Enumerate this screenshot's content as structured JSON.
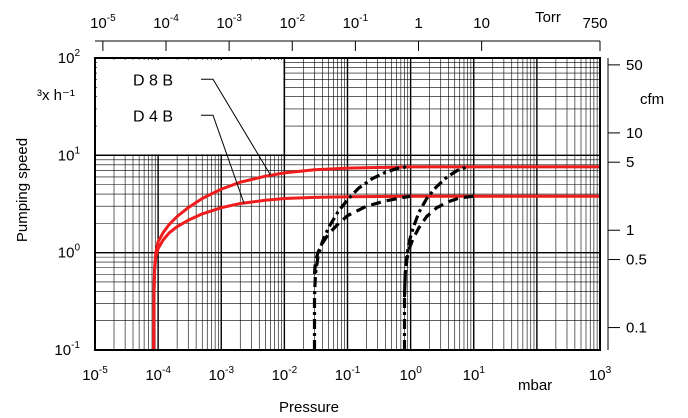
{
  "chart_data": {
    "type": "line",
    "title": "",
    "xlabel": "Pressure",
    "xunit": "mbar",
    "ylabel": "Pumping speed",
    "yunit": "³x h⁻¹",
    "xscale": "log",
    "yscale": "log",
    "xlim": [
      1e-05,
      1000
    ],
    "ylim": [
      0.1,
      100
    ],
    "grid": true,
    "x_ticks": [
      {
        "base": "10",
        "exp": "-5",
        "value": 1e-05
      },
      {
        "base": "10",
        "exp": "-4",
        "value": 0.0001
      },
      {
        "base": "10",
        "exp": "-3",
        "value": 0.001
      },
      {
        "base": "10",
        "exp": "-2",
        "value": 0.01
      },
      {
        "base": "10",
        "exp": "-1",
        "value": 0.1
      },
      {
        "base": "10",
        "exp": "0",
        "value": 1
      },
      {
        "base": "10",
        "exp": "1",
        "value": 10
      },
      {
        "base": "10",
        "exp": "3",
        "value": 1000
      }
    ],
    "y_ticks": [
      {
        "base": "10",
        "exp": "2",
        "value": 100
      },
      {
        "base": "10",
        "exp": "1",
        "value": 10
      },
      {
        "base": "10",
        "exp": "0",
        "value": 1
      },
      {
        "base": "10",
        "exp": "-1",
        "value": 0.1
      }
    ],
    "top_axis": {
      "unit": "Torr",
      "ticks": [
        {
          "base": "10",
          "exp": "-5",
          "value": 1e-05
        },
        {
          "base": "10",
          "exp": "-4",
          "value": 0.0001
        },
        {
          "base": "10",
          "exp": "-3",
          "value": 0.001
        },
        {
          "base": "10",
          "exp": "-2",
          "value": 0.01
        },
        {
          "base": "10",
          "exp": "-1",
          "value": 0.1
        },
        {
          "base": "1",
          "exp": "",
          "value": 1
        },
        {
          "base": "10",
          "exp": "",
          "value": 10
        },
        {
          "base": "750",
          "exp": "",
          "value": 750
        }
      ]
    },
    "right_axis": {
      "unit": "cfm",
      "ticks": [
        {
          "label": "50",
          "value": 50
        },
        {
          "label": "10",
          "value": 10
        },
        {
          "label": "5",
          "value": 5
        },
        {
          "label": "1",
          "value": 1
        },
        {
          "label": "0.5",
          "value": 0.5
        },
        {
          "label": "0.1",
          "value": 0.1
        }
      ]
    },
    "series": [
      {
        "name": "D 8 B",
        "color": "#ee1c1c",
        "style": "solid",
        "x": [
          8.5e-05,
          8.6e-05,
          8.8e-05,
          9.2e-05,
          0.0001,
          0.00012,
          0.00015,
          0.0002,
          0.0003,
          0.0005,
          0.001,
          0.002,
          0.005,
          0.01,
          0.03,
          0.1,
          0.3,
          1,
          10,
          1000
        ],
        "y": [
          0.1,
          0.4,
          0.7,
          1.0,
          1.3,
          1.6,
          1.95,
          2.35,
          2.9,
          3.6,
          4.5,
          5.3,
          6.1,
          6.6,
          7.1,
          7.4,
          7.5,
          7.6,
          7.6,
          7.6
        ]
      },
      {
        "name": "D 4 B",
        "color": "#ee1c1c",
        "style": "solid",
        "x": [
          8.5e-05,
          8.6e-05,
          8.8e-05,
          9.2e-05,
          0.0001,
          0.00012,
          0.00015,
          0.0002,
          0.0003,
          0.0005,
          0.001,
          0.002,
          0.005,
          0.01,
          0.03,
          0.1,
          0.3,
          1,
          10,
          1000
        ],
        "y": [
          0.1,
          0.4,
          0.65,
          0.9,
          1.1,
          1.35,
          1.6,
          1.85,
          2.15,
          2.5,
          2.9,
          3.2,
          3.45,
          3.6,
          3.7,
          3.75,
          3.78,
          3.8,
          3.8,
          3.8
        ]
      },
      {
        "color": "#000000",
        "style": "dash-dot",
        "x": [
          0.03,
          0.03,
          0.031,
          0.034,
          0.04,
          0.05,
          0.07,
          0.1,
          0.15,
          0.25,
          0.4,
          0.6,
          0.85
        ],
        "y": [
          0.1,
          0.35,
          0.6,
          0.9,
          1.3,
          1.8,
          2.6,
          3.5,
          4.6,
          5.8,
          6.7,
          7.3,
          7.6
        ]
      },
      {
        "color": "#000000",
        "style": "dashed",
        "x": [
          0.03,
          0.031,
          0.034,
          0.04,
          0.05,
          0.07,
          0.1,
          0.2,
          0.4,
          0.7,
          1.0
        ],
        "y": [
          0.6,
          0.8,
          1.0,
          1.25,
          1.55,
          1.95,
          2.4,
          3.0,
          3.4,
          3.65,
          3.8
        ]
      },
      {
        "color": "#000000",
        "style": "dash-dot",
        "x": [
          0.8,
          0.8,
          0.82,
          0.87,
          0.95,
          1.1,
          1.35,
          1.8,
          2.6,
          3.8,
          5.5,
          8
        ],
        "y": [
          0.1,
          0.35,
          0.6,
          0.9,
          1.3,
          1.8,
          2.6,
          3.6,
          4.8,
          6.0,
          7.0,
          7.6
        ]
      },
      {
        "color": "#000000",
        "style": "dashed",
        "x": [
          0.8,
          0.82,
          0.87,
          0.95,
          1.1,
          1.35,
          1.8,
          2.6,
          4,
          6,
          10
        ],
        "y": [
          0.35,
          0.6,
          0.85,
          1.1,
          1.4,
          1.8,
          2.35,
          2.9,
          3.35,
          3.65,
          3.8
        ]
      }
    ],
    "legend": [
      {
        "label": "D 8 B",
        "series": 0,
        "anchor_x": 0.006,
        "anchor_y": 6.3
      },
      {
        "label": "D 4 B",
        "series": 1,
        "anchor_x": 0.0023,
        "anchor_y": 3.2
      }
    ]
  }
}
